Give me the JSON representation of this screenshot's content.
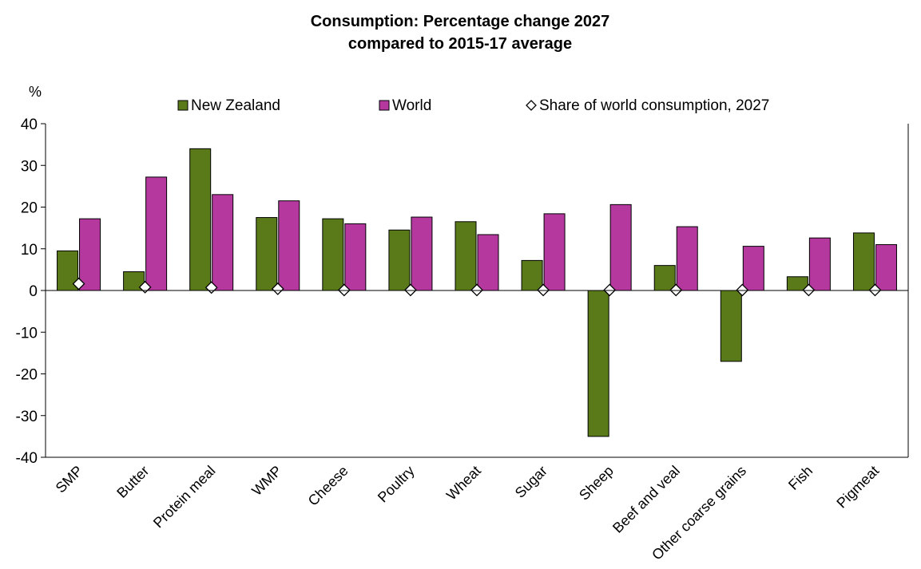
{
  "chart_data": {
    "type": "bar",
    "title": "Consumption: Percentage change 2027",
    "subtitle": "compared to 2015-17 average",
    "ylabel": "%",
    "xlabel": "",
    "ylim": [
      -40,
      40
    ],
    "yticks": [
      40,
      30,
      20,
      10,
      0,
      -10,
      -20,
      -30,
      -40
    ],
    "legend_position": "top",
    "grid": false,
    "categories": [
      "SMP",
      "Butter",
      "Protein meal",
      "WMP",
      "Cheese",
      "Poultry",
      "Wheat",
      "Sugar",
      "Sheep",
      "Beef and veal",
      "Other coarse grains",
      "Fish",
      "Pigmeat"
    ],
    "series": [
      {
        "name": "New Zealand",
        "type": "bar",
        "color": "#5a7a1a",
        "values": [
          9.5,
          4.5,
          34.0,
          17.5,
          17.2,
          14.5,
          16.5,
          7.2,
          -35.0,
          6.0,
          -17.0,
          3.3,
          13.8
        ]
      },
      {
        "name": "World",
        "type": "bar",
        "color": "#b5389f",
        "values": [
          17.2,
          27.2,
          23.0,
          21.5,
          16.0,
          17.6,
          13.4,
          18.4,
          20.6,
          15.3,
          10.6,
          12.6,
          11.0
        ]
      },
      {
        "name": "Share of world consumption, 2027",
        "type": "scatter",
        "marker": "diamond",
        "values": [
          1.6,
          0.8,
          0.7,
          0.4,
          0.1,
          0.1,
          0.1,
          0.1,
          0.1,
          0.1,
          0.1,
          0.1,
          0.1
        ]
      }
    ]
  }
}
